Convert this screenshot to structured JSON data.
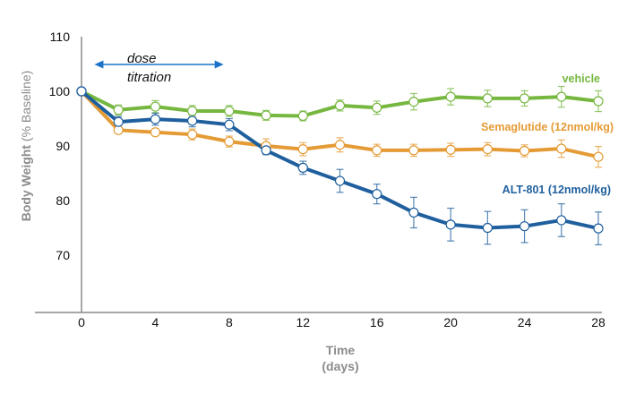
{
  "chart_data": {
    "type": "line",
    "title": "",
    "xlabel_line1": "Time",
    "xlabel_line2": "(days)",
    "ylabel_bold": "Body Weight",
    "ylabel_normal": "(% Baseline)",
    "xlim": [
      0,
      28
    ],
    "ylim": [
      59.5,
      110
    ],
    "x_ticks": [
      0,
      4,
      8,
      12,
      16,
      20,
      24,
      28
    ],
    "x_tick_labels": [
      "0",
      "4",
      "8",
      "12",
      "16",
      "20",
      "24",
      "28"
    ],
    "y_ticks": [
      70,
      80,
      90,
      100,
      110
    ],
    "y_tick_labels": [
      "70",
      "80",
      "90",
      "100",
      "110"
    ],
    "grid": false,
    "x": [
      0,
      2,
      4,
      6,
      8,
      10,
      12,
      14,
      16,
      18,
      20,
      22,
      24,
      26,
      28
    ],
    "series": [
      {
        "name": "vehicle",
        "color": "#76b73f",
        "values": [
          100,
          96.6,
          97.2,
          96.4,
          96.4,
          95.6,
          95.5,
          97.4,
          97.0,
          98.1,
          99.0,
          98.7,
          98.7,
          99.0,
          98.2
        ],
        "errors": [
          0,
          0.9,
          1.1,
          1.0,
          1.0,
          0.9,
          0.9,
          1.0,
          1.2,
          1.5,
          1.5,
          1.5,
          1.4,
          1.9,
          1.9
        ]
      },
      {
        "name": "Semaglutide (12nmol/kg)",
        "color": "#e59b35",
        "values": [
          100,
          92.9,
          92.5,
          92.1,
          90.8,
          90.0,
          89.4,
          90.2,
          89.2,
          89.2,
          89.3,
          89.4,
          89.1,
          89.5,
          88.0
        ],
        "errors": [
          0,
          0.4,
          0.5,
          1.0,
          1.0,
          1.3,
          1.2,
          1.3,
          1.1,
          1.1,
          1.2,
          1.2,
          1.1,
          1.6,
          1.9
        ]
      },
      {
        "name": "ALT-801 (12nmol/kg)",
        "color": "#1f5f9e",
        "values": [
          100,
          94.4,
          94.9,
          94.6,
          93.9,
          89.2,
          86.0,
          83.6,
          81.2,
          77.8,
          75.6,
          75.0,
          75.3,
          76.4,
          74.9
        ],
        "errors": [
          0,
          1.0,
          1.1,
          1.1,
          1.1,
          0.8,
          1.2,
          2.1,
          1.8,
          2.8,
          3.0,
          3.0,
          3.0,
          3.0,
          3.0
        ]
      }
    ],
    "annotation": {
      "line1": "dose",
      "line2": "titration",
      "arrow_from_day": 0.7,
      "arrow_to_day": 7.7,
      "arrow_color": "#1a73c9"
    }
  }
}
